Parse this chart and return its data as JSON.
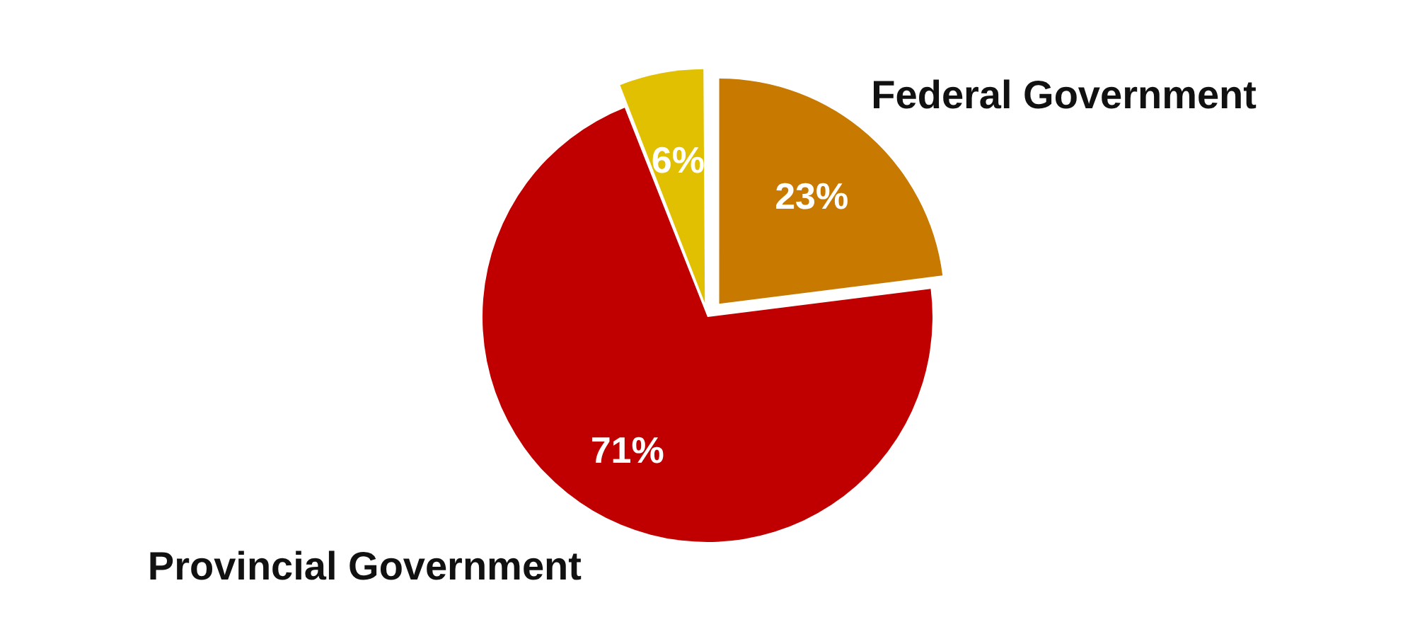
{
  "chart_data": {
    "type": "pie",
    "categories": [
      "Federal Government",
      "Provincial Government",
      null
    ],
    "values": [
      23,
      71,
      6
    ],
    "colors": [
      "#c87a00",
      "#c00000",
      "#e0c000"
    ],
    "value_labels": [
      "23%",
      "71%",
      "6%"
    ],
    "legend": false
  }
}
